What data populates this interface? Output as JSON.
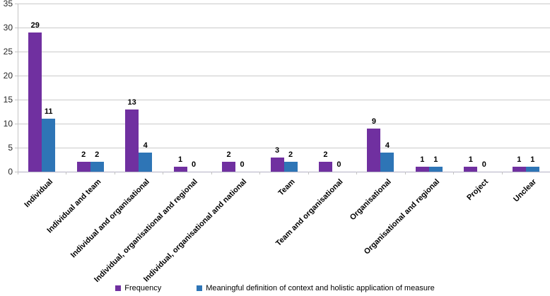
{
  "chart_data": {
    "type": "bar",
    "title": "",
    "categories": [
      "Individual",
      "Individual and team",
      "Individual and organisational",
      "Individual, organisational and regional",
      "Individual, organisational and national",
      "Team",
      "Team and organisational",
      "Organisational",
      "Organisational and regional",
      "Project",
      "Unclear"
    ],
    "series": [
      {
        "name": "Frequency",
        "color": "#7030A0",
        "values": [
          29,
          2,
          13,
          1,
          2,
          3,
          2,
          9,
          1,
          1,
          1
        ]
      },
      {
        "name": "Meaningful definition of context and holistic application of measure",
        "color": "#2E75B6",
        "values": [
          11,
          2,
          4,
          0,
          0,
          2,
          0,
          4,
          1,
          0,
          1
        ]
      }
    ],
    "value_labels": true,
    "xlabel": "",
    "ylabel": "",
    "ylim": [
      0,
      35
    ],
    "ytick_step": 5,
    "yticks": [
      "0",
      "5",
      "10",
      "15",
      "20",
      "25",
      "30",
      "35"
    ],
    "grid": "horizontal-gridlines-on",
    "legend_position": "bottom-center",
    "x_label_rotation_deg": 45
  },
  "colors": {
    "background": "#FFFFFF",
    "gridline": "#C9C9C9",
    "axis": "#C3C3C3",
    "text": "#000000"
  }
}
